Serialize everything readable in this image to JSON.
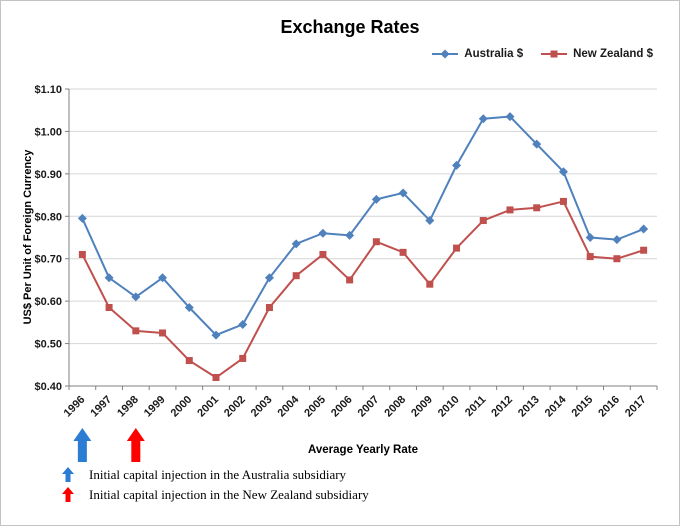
{
  "title": "Exchange Rates",
  "legend": {
    "items": [
      {
        "label": "Australia $",
        "color": "#4F81BD",
        "marker": "diamond"
      },
      {
        "label": "New Zealand $",
        "color": "#C0504D",
        "marker": "square"
      }
    ]
  },
  "axes": {
    "y_title": "US$ Per Unit of Foreign Currency",
    "x_title": "Average Yearly Rate"
  },
  "arrows": [
    {
      "year": "1996",
      "color": "#2B7CD3"
    },
    {
      "year": "1998",
      "color": "#FF0000"
    }
  ],
  "annotations": [
    {
      "color": "#2B7CD3",
      "text": "Initial capital injection in the Australia subsidiary"
    },
    {
      "color": "#FF0000",
      "text": "Initial capital injection in the New Zealand subsidiary"
    }
  ],
  "chart_data": {
    "type": "line",
    "title": "Exchange Rates",
    "xlabel": "Average Yearly Rate",
    "ylabel": "US$ Per Unit of Foreign Currency",
    "categories": [
      "1996",
      "1997",
      "1998",
      "1999",
      "2000",
      "2001",
      "2002",
      "2003",
      "2004",
      "2005",
      "2006",
      "2007",
      "2008",
      "2009",
      "2010",
      "2011",
      "2012",
      "2013",
      "2014",
      "2015",
      "2016",
      "2017"
    ],
    "series": [
      {
        "name": "Australia $",
        "color": "#4F81BD",
        "marker": "diamond",
        "values": [
          0.795,
          0.655,
          0.61,
          0.655,
          0.585,
          0.52,
          0.545,
          0.655,
          0.735,
          0.76,
          0.755,
          0.84,
          0.855,
          0.79,
          0.92,
          1.03,
          1.035,
          0.97,
          0.905,
          0.75,
          0.745,
          0.77
        ]
      },
      {
        "name": "New Zealand $",
        "color": "#C0504D",
        "marker": "square",
        "values": [
          0.71,
          0.585,
          0.53,
          0.525,
          0.46,
          0.42,
          0.465,
          0.585,
          0.66,
          0.71,
          0.65,
          0.74,
          0.715,
          0.64,
          0.725,
          0.79,
          0.815,
          0.82,
          0.835,
          0.705,
          0.7,
          0.72
        ]
      }
    ],
    "ylim": [
      0.4,
      1.1
    ],
    "y_tick_step": 0.1,
    "y_tick_format": "$0.00",
    "grid": true,
    "legend_position": "top-right"
  }
}
